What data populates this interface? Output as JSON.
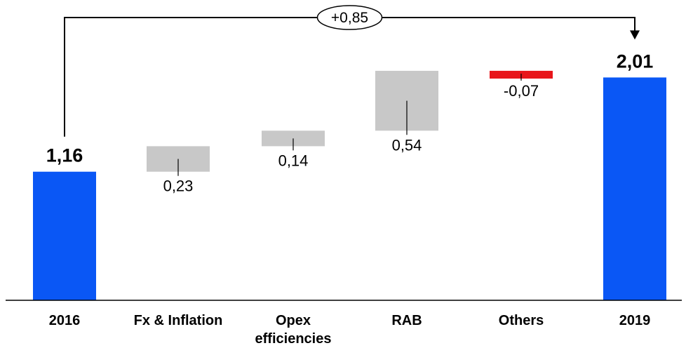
{
  "chart_data": {
    "type": "bar",
    "subtype": "waterfall",
    "categories": [
      "2016",
      "Fx & Inflation",
      "Opex efficiencies",
      "RAB",
      "Others",
      "2019"
    ],
    "category_lines": [
      [
        "2016"
      ],
      [
        "Fx & Inflation"
      ],
      [
        "Opex",
        "efficiencies"
      ],
      [
        "RAB"
      ],
      [
        "Others"
      ],
      [
        "2019"
      ]
    ],
    "values": [
      1.16,
      0.23,
      0.14,
      0.54,
      -0.07,
      2.01
    ],
    "kinds": [
      "total",
      "delta",
      "delta",
      "delta",
      "delta",
      "total"
    ],
    "labels": [
      "1,16",
      "0,23",
      "0,14",
      "0,54",
      "-0,07",
      "2,01"
    ],
    "ylim": [
      0,
      2.25
    ],
    "grid": false,
    "colors": {
      "total": "#0a57f5",
      "increase": "#c8c8c8",
      "decrease": "#e8161b",
      "axis": "#000000"
    },
    "annotation": {
      "label": "+0,85",
      "from_category": "2016",
      "to_category": "2019"
    }
  }
}
